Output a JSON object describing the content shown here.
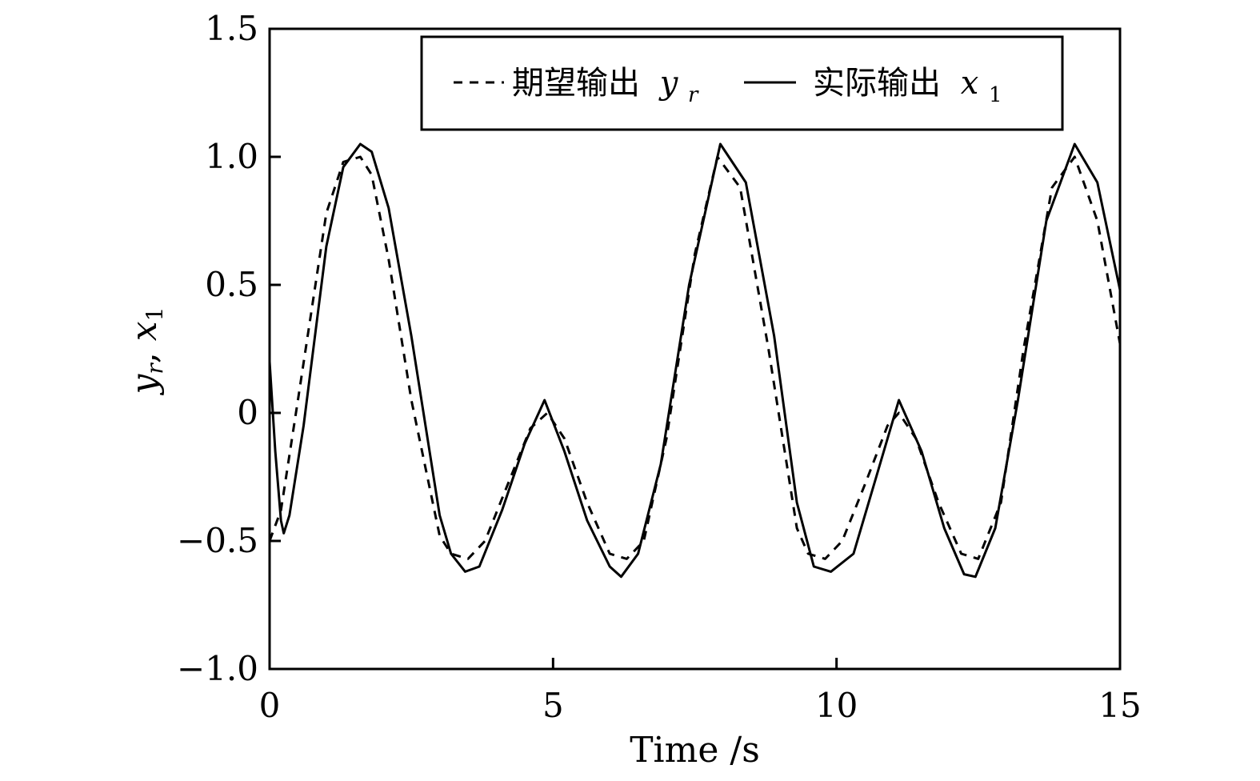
{
  "chart_data": {
    "type": "line",
    "xlabel": "Time /s",
    "ylabel": "y_r, x_1",
    "ylabel_parts": {
      "y": "y",
      "r": "r",
      "sep": ", ",
      "x": "x",
      "one": "1"
    },
    "xlim": [
      0,
      15
    ],
    "ylim": [
      -1.0,
      1.5
    ],
    "x_ticks": [
      0,
      5,
      10,
      15
    ],
    "x_tick_labels": [
      "0",
      "5",
      "10",
      "15"
    ],
    "y_ticks": [
      -1.0,
      -0.5,
      0,
      0.5,
      1.0,
      1.5
    ],
    "y_tick_labels": [
      "−1.0",
      "−0.5",
      "0",
      "0.5",
      "1.0",
      "1.5"
    ],
    "grid": false,
    "legend_position": "top-right",
    "series": [
      {
        "name": "期望输出 y_r",
        "label_text": "期望输出",
        "label_var": "y",
        "label_sub": "r",
        "style": "dashed",
        "color": "#000000",
        "x": [
          0,
          0.2,
          0.5,
          1.0,
          1.3,
          1.6,
          1.8,
          2.1,
          2.5,
          3.0,
          3.2,
          3.5,
          3.8,
          4.2,
          4.6,
          4.9,
          5.2,
          5.6,
          6.0,
          6.3,
          6.6,
          7.0,
          7.5,
          7.9,
          8.3,
          8.8,
          9.3,
          9.5,
          9.8,
          10.1,
          10.5,
          10.9,
          11.1,
          11.4,
          11.8,
          12.2,
          12.5,
          12.9,
          13.3,
          13.8,
          14.2,
          14.6,
          15.0
        ],
        "y": [
          -0.5,
          -0.38,
          0.05,
          0.78,
          0.98,
          1.0,
          0.93,
          0.6,
          0.05,
          -0.48,
          -0.55,
          -0.57,
          -0.5,
          -0.28,
          -0.06,
          0.0,
          -0.1,
          -0.35,
          -0.55,
          -0.57,
          -0.5,
          -0.1,
          0.62,
          1.0,
          0.88,
          0.25,
          -0.45,
          -0.55,
          -0.57,
          -0.5,
          -0.28,
          -0.05,
          0.0,
          -0.1,
          -0.35,
          -0.55,
          -0.57,
          -0.35,
          0.25,
          0.88,
          1.0,
          0.75,
          0.27
        ]
      },
      {
        "name": "实际输出 x_1",
        "label_text": "实际输出",
        "label_var": "x",
        "label_sub": "1",
        "style": "solid",
        "color": "#000000",
        "x": [
          0,
          0.1,
          0.2,
          0.25,
          0.35,
          0.6,
          1.0,
          1.3,
          1.6,
          1.8,
          2.1,
          2.5,
          3.0,
          3.2,
          3.45,
          3.7,
          4.1,
          4.5,
          4.85,
          5.2,
          5.6,
          6.0,
          6.2,
          6.5,
          6.9,
          7.4,
          7.95,
          8.4,
          8.9,
          9.3,
          9.6,
          9.9,
          10.3,
          10.7,
          11.1,
          11.5,
          11.9,
          12.25,
          12.45,
          12.8,
          13.2,
          13.7,
          14.2,
          14.6,
          15.0
        ],
        "y": [
          0.2,
          -0.15,
          -0.42,
          -0.47,
          -0.4,
          -0.05,
          0.65,
          0.96,
          1.05,
          1.02,
          0.8,
          0.3,
          -0.4,
          -0.55,
          -0.62,
          -0.6,
          -0.38,
          -0.12,
          0.05,
          -0.15,
          -0.42,
          -0.6,
          -0.64,
          -0.55,
          -0.2,
          0.5,
          1.05,
          0.9,
          0.3,
          -0.35,
          -0.6,
          -0.62,
          -0.55,
          -0.25,
          0.05,
          -0.15,
          -0.45,
          -0.63,
          -0.64,
          -0.45,
          0.05,
          0.75,
          1.05,
          0.9,
          0.48
        ]
      }
    ]
  }
}
